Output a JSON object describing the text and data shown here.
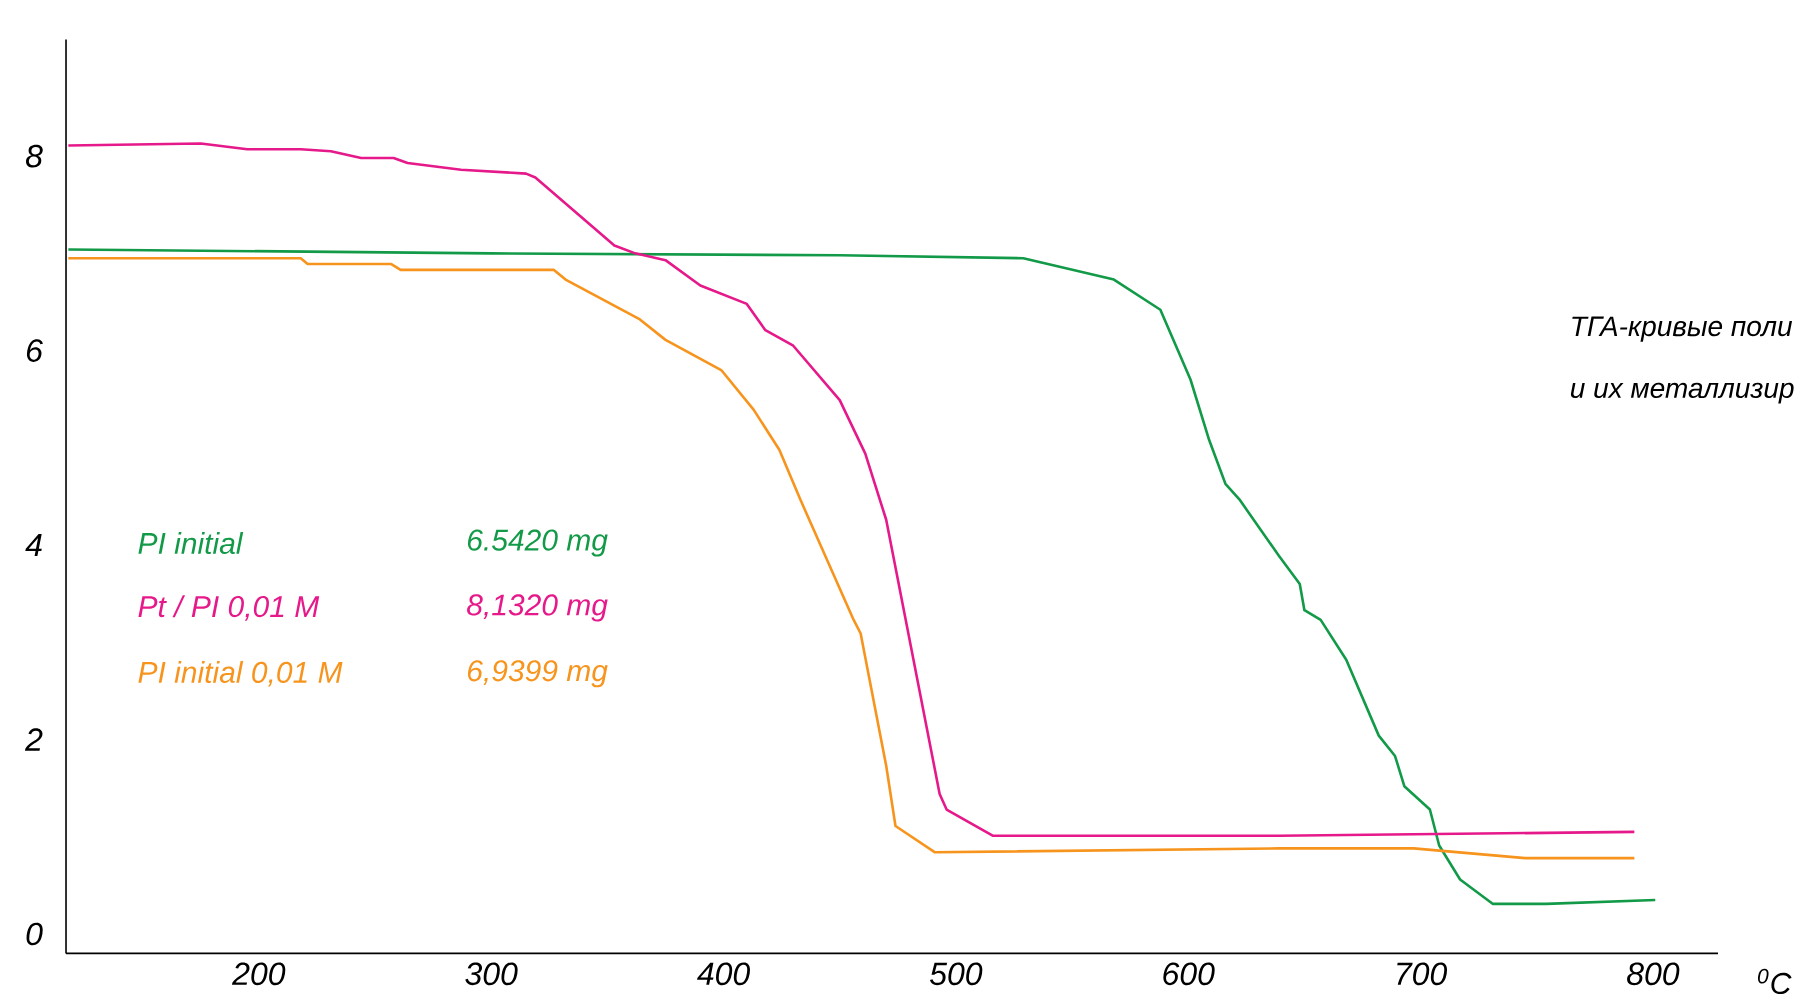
{
  "chart_data": {
    "type": "line",
    "xlabel": "$^{0}$C",
    "xlim": [
      117,
      828
    ],
    "xticks": [
      200,
      300,
      400,
      500,
      600,
      700,
      800
    ],
    "ylim": [
      -0.2,
      9.2
    ],
    "yticks": [
      0,
      2,
      4,
      6,
      8
    ],
    "legend": "left",
    "series": [
      {
        "name": "PI initial",
        "color": "#129a48",
        "x": [
          118,
          300,
          450,
          529,
          568,
          588,
          601,
          609,
          616,
          622,
          639,
          648,
          650,
          657,
          668,
          682,
          689,
          693,
          704,
          708,
          717,
          731,
          754,
          801
        ],
        "values": [
          7.04,
          7.0,
          6.98,
          6.95,
          6.73,
          6.42,
          5.7,
          5.08,
          4.63,
          4.47,
          3.89,
          3.6,
          3.33,
          3.23,
          2.82,
          2.04,
          1.83,
          1.52,
          1.28,
          0.91,
          0.56,
          0.31,
          0.31,
          0.35
        ]
      },
      {
        "name": "Pt / PI 0,01 M",
        "color": "#e6198a",
        "x": [
          118,
          175,
          195,
          218,
          231,
          244,
          258,
          264,
          287,
          315,
          319,
          353,
          362,
          375,
          390,
          410,
          418,
          430,
          450,
          461,
          470,
          493,
          496,
          516,
          639,
          792
        ],
        "values": [
          8.11,
          8.13,
          8.07,
          8.07,
          8.05,
          7.98,
          7.98,
          7.93,
          7.86,
          7.82,
          7.78,
          7.08,
          7.0,
          6.93,
          6.67,
          6.48,
          6.21,
          6.05,
          5.49,
          4.94,
          4.26,
          1.44,
          1.28,
          1.01,
          1.01,
          1.05
        ]
      },
      {
        "name": "PI initial 0,01 M",
        "color": "#f7941d",
        "x": [
          118,
          218,
          221,
          257,
          261,
          327,
          332,
          364,
          375,
          399,
          413,
          424,
          433,
          456,
          459,
          470,
          474,
          491,
          639,
          697,
          745,
          792
        ],
        "values": [
          6.95,
          6.95,
          6.89,
          6.89,
          6.83,
          6.83,
          6.73,
          6.32,
          6.11,
          5.8,
          5.39,
          4.98,
          4.47,
          3.23,
          3.09,
          1.73,
          1.11,
          0.84,
          0.88,
          0.88,
          0.78,
          0.78
        ]
      }
    ],
    "annotations": [
      "6.5420 mg",
      "8,1320 mg",
      "6,9399 mg",
      "ТГА-кривые поли",
      "и их металлизир"
    ]
  }
}
